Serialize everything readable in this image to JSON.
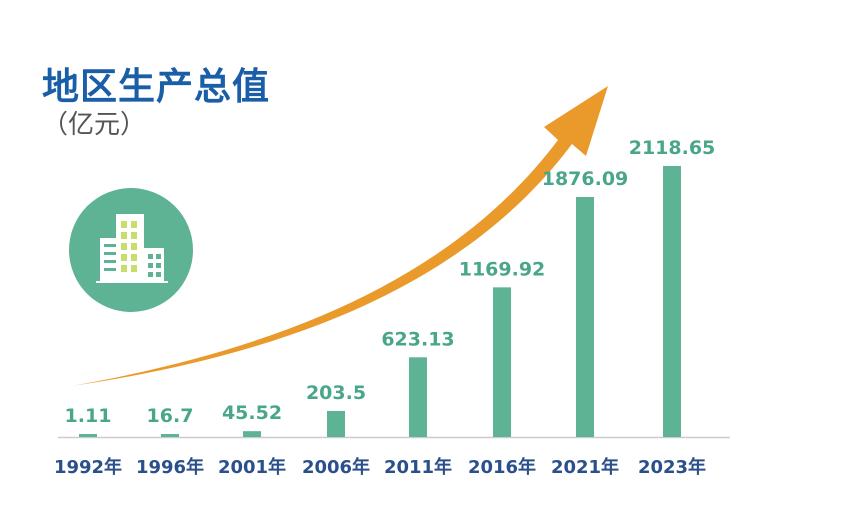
{
  "chart_data": {
    "type": "bar",
    "title": "地区生产总值",
    "subtitle": "（亿元）",
    "categories": [
      "1992年",
      "1996年",
      "2001年",
      "2006年",
      "2011年",
      "2016年",
      "2021年",
      "2023年"
    ],
    "values": [
      1.11,
      16.7,
      45.52,
      203.5,
      623.13,
      1169.92,
      1876.09,
      2118.65
    ],
    "value_labels": [
      "1.11",
      "16.7",
      "45.52",
      "203.5",
      "623.13",
      "1169.92",
      "1876.09",
      "2118.65"
    ],
    "ylim": [
      0,
      2118.65
    ],
    "grid": false,
    "legend": "none"
  },
  "colors": {
    "bar": "#5db394",
    "value_label": "#4aa68a",
    "axis_label": "#2a4f8a",
    "title": "#1a5ea8",
    "arrow": "#e99a2b",
    "baseline": "#cccccc",
    "icon_circle": "#5db394"
  },
  "icons": {
    "decoration": "building-icon",
    "trend": "growth-arrow"
  }
}
